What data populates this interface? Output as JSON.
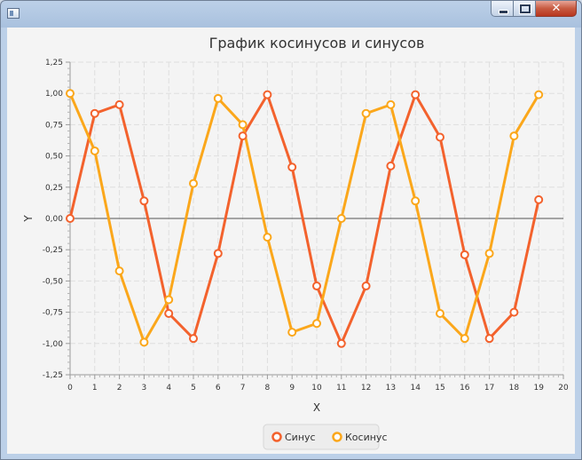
{
  "window": {
    "title": "",
    "close_glyph": "✕"
  },
  "chart_data": {
    "type": "line",
    "title": "График косинусов и синусов",
    "xlabel": "X",
    "ylabel": "Y",
    "xlim": [
      0,
      20
    ],
    "ylim": [
      -1.25,
      1.25
    ],
    "xticks": [
      "0",
      "1",
      "2",
      "3",
      "4",
      "5",
      "6",
      "7",
      "8",
      "9",
      "10",
      "11",
      "12",
      "13",
      "14",
      "15",
      "16",
      "17",
      "18",
      "19",
      "20"
    ],
    "yticks": [
      "1,25",
      "1,00",
      "0,75",
      "0,50",
      "0,25",
      "0,00",
      "-0,25",
      "-0,50",
      "-0,75",
      "-1,00",
      "-1,25"
    ],
    "grid": true,
    "legend_position": "bottom",
    "series": [
      {
        "name": "Синус",
        "color": "#f3622d",
        "x": [
          0,
          1,
          2,
          3,
          4,
          5,
          6,
          7,
          8,
          9,
          10,
          11,
          12,
          13,
          14,
          15,
          16,
          17,
          18,
          19
        ],
        "y": [
          0.0,
          0.84,
          0.91,
          0.14,
          -0.76,
          -0.96,
          -0.28,
          0.66,
          0.99,
          0.41,
          -0.54,
          -1.0,
          -0.54,
          0.42,
          0.99,
          0.65,
          -0.29,
          -0.96,
          -0.75,
          0.15
        ]
      },
      {
        "name": "Косинус",
        "color": "#fba71b",
        "x": [
          0,
          1,
          2,
          3,
          4,
          5,
          6,
          7,
          8,
          9,
          10,
          11,
          12,
          13,
          14,
          15,
          16,
          17,
          18,
          19
        ],
        "y": [
          1.0,
          0.54,
          -0.42,
          -0.99,
          -0.65,
          0.28,
          0.96,
          0.75,
          -0.15,
          -0.91,
          -0.84,
          0.0,
          0.84,
          0.91,
          0.14,
          -0.76,
          -0.96,
          -0.28,
          0.66,
          0.99
        ]
      }
    ]
  }
}
